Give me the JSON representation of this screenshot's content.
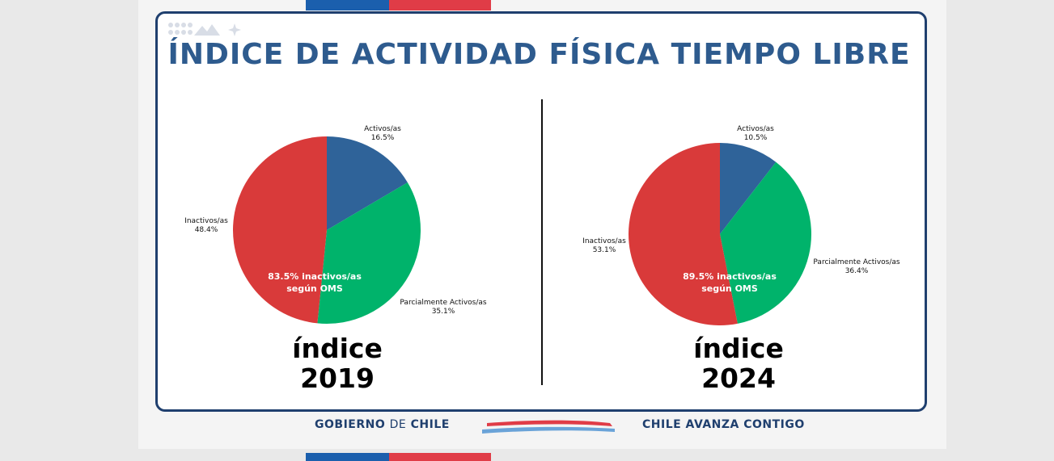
{
  "title": "ÍNDICE DE ACTIVIDAD FÍSICA TIEMPO LIBRE",
  "colors": {
    "activos": "#2f6399",
    "parciales": "#00b36b",
    "inactivos": "#d93a3a",
    "brand_blue": "#1f3f6e",
    "flag_red": "#e03c47"
  },
  "footer": {
    "left_bold1": "GOBIERNO",
    "left_light": "DE",
    "left_bold2": "CHILE",
    "right": "CHILE AVANZA CONTIGO"
  },
  "chart_data": [
    {
      "type": "pie",
      "year_label": "índice",
      "year": "2019",
      "center_text": [
        "83.5% inactivos/as",
        "según OMS"
      ],
      "slices": [
        {
          "name": "Activos/as",
          "value": 16.5,
          "label": "16.5%"
        },
        {
          "name": "Parcialmente Activos/as",
          "value": 35.1,
          "label": "35.1%"
        },
        {
          "name": "Inactivos/as",
          "value": 48.4,
          "label": "48.4%"
        }
      ]
    },
    {
      "type": "pie",
      "year_label": "índice",
      "year": "2024",
      "center_text": [
        "89.5% inactivos/as",
        "según OMS"
      ],
      "slices": [
        {
          "name": "Activos/as",
          "value": 10.5,
          "label": "10.5%"
        },
        {
          "name": "Parcialmente Activos/as",
          "value": 36.4,
          "label": "36.4%"
        },
        {
          "name": "Inactivos/as",
          "value": 53.1,
          "label": "53.1%"
        }
      ]
    }
  ]
}
